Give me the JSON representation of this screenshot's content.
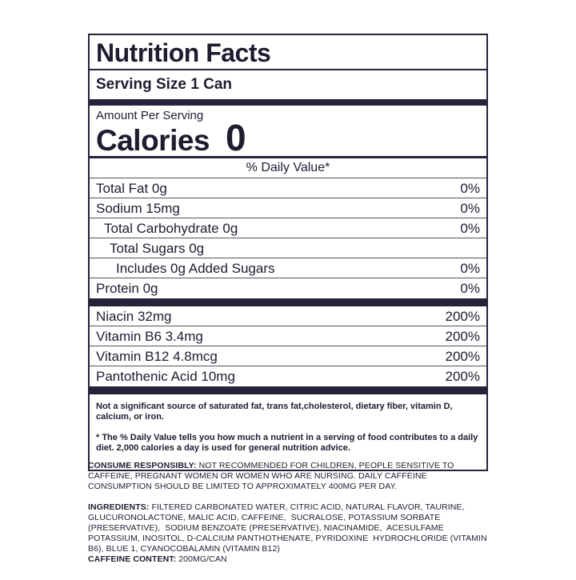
{
  "colors": {
    "ink": "#26243a",
    "thin_rule": "#55545e",
    "background": "#ffffff"
  },
  "label": {
    "title": "Nutrition Facts",
    "serving_size": "Serving Size 1 Can",
    "amount_per_serving": "Amount Per Serving",
    "calories_label": "Calories",
    "calories_value": "0",
    "daily_value_header": "% Daily Value*",
    "nutrient_rows": [
      {
        "name": "Total Fat 0g",
        "dv": "0%"
      },
      {
        "name": "Sodium 15mg",
        "dv": "0%"
      },
      {
        "name": "Total Carbohydrate 0g",
        "dv": "0%"
      },
      {
        "name": "Total Sugars 0g",
        "dv": ""
      },
      {
        "name": "Includes 0g Added Sugars",
        "dv": "0%"
      },
      {
        "name": "Protein 0g",
        "dv": "0%"
      }
    ],
    "vitamin_rows": [
      {
        "name": "Niacin 32mg",
        "dv": "200%"
      },
      {
        "name": "Vitamin B6 3.4mg",
        "dv": "200%"
      },
      {
        "name": "Vitamin B12 4.8mcg",
        "dv": "200%"
      },
      {
        "name": "Pantothenic Acid 10mg",
        "dv": "200%"
      }
    ],
    "footnote_not_significant": "Not a significant source of saturated fat, trans fat,cholesterol, dietary fiber, vitamin D, calcium, or iron.",
    "footnote_daily_value": "* The % Daily Value tells you how much a nutrient in a serving of food contributes to a daily diet. 2,000 calories a day is used for general nutrition advice."
  },
  "disclaimers": {
    "consume_label": "CONSUME RESPONSIBLY:",
    "consume_text": " NOT RECOMMENDED FOR CHILDREN, PEOPLE SENSITIVE TO CAFFEINE, PREGNANT WOMEN OR WOMEN WHO ARE NURSING. DAILY CAFFEINE CONSUMPTION SHOULD BE LIMITED TO APPROXIMATELY 400MG PER DAY.",
    "ingredients_label": "INGREDIENTS:",
    "ingredients_text": " FILTERED CARBONATED WATER, CITRIC ACID, NATURAL FLAVOR, TAURINE, GLUCURONOLACTONE, MALIC ACID, CAFFEINE,  SUCRALOSE, POTASSIUM SORBATE (PRESERVATIVE),  SODIUM BENZOATE (PRESERVATIVE), NIACINAMIDE,  ACESULFAME POTASSIUM, INOSITOL, D-CALCIUM PANTHOTHENATE, PYRIDOXINE  HYDROCHLORIDE (VITAMIN B6), BLUE 1, CYANOCOBALAMIN (VITAMIN B12)",
    "caffeine_label": "CAFFEINE CONTENT:",
    "caffeine_text": " 200MG/CAN"
  }
}
